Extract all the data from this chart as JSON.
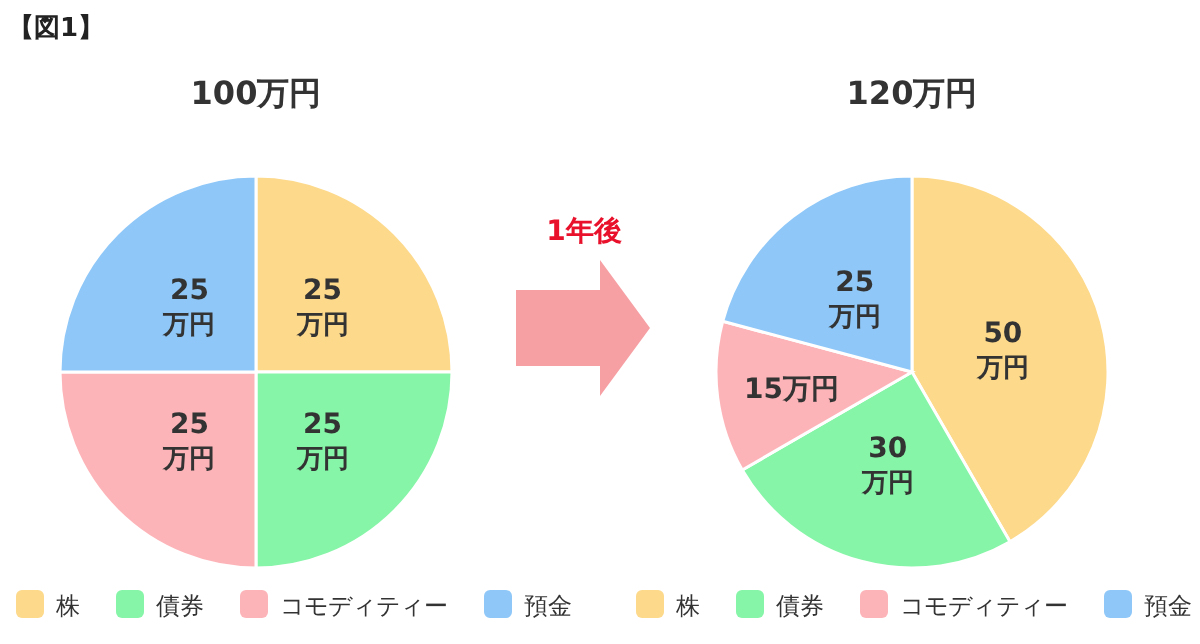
{
  "chart_data": [
    {
      "type": "pie",
      "title": "100万円",
      "categories": [
        "株",
        "債券",
        "コモディティー",
        "預金"
      ],
      "values": [
        25,
        25,
        25,
        25
      ],
      "colors": [
        "#fdd98b",
        "#86f5a7",
        "#fdb4b8",
        "#8fc8f8"
      ],
      "value_labels": [
        "25\n万円",
        "25\n万円",
        "25\n万円",
        "25\n万円"
      ],
      "legend": "bottom",
      "annotations": [
        "【図1】"
      ]
    },
    {
      "type": "pie",
      "title": "120万円",
      "categories": [
        "株",
        "債券",
        "コモディティー",
        "預金"
      ],
      "values": [
        50,
        30,
        15,
        25
      ],
      "colors": [
        "#fdd98b",
        "#86f5a7",
        "#fdb4b8",
        "#8fc8f8"
      ],
      "value_labels": [
        "50\n万円",
        "30\n万円",
        "15万円",
        "25\n万円"
      ],
      "legend": "bottom",
      "annotations": [
        "1年後"
      ]
    }
  ]
}
